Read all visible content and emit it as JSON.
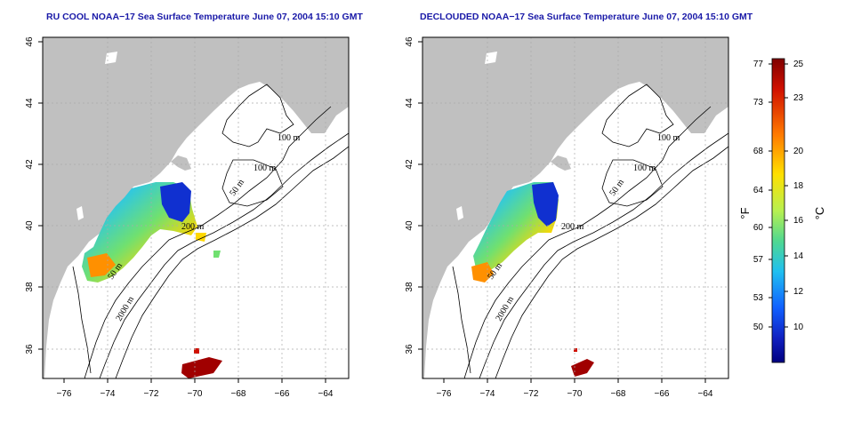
{
  "panels": [
    {
      "title": "RU COOL NOAA−17 Sea Surface Temperature June 07, 2004 15:10 GMT",
      "variant": "raw"
    },
    {
      "title": "DECLOUDED NOAA−17 Sea Surface Temperature June 07, 2004 15:10 GMT",
      "variant": "declouded"
    }
  ],
  "axes": {
    "lon_ticks": [
      "−76",
      "−74",
      "−72",
      "−70",
      "−68",
      "−66",
      "−64"
    ],
    "lat_ticks": [
      "36",
      "38",
      "40",
      "42",
      "44",
      "46"
    ],
    "lon_range": [
      -77,
      -63
    ],
    "lat_range": [
      35,
      46
    ]
  },
  "contour_labels": [
    "100 m",
    "100 m",
    "50 m",
    "200 m",
    "50 m",
    "2000 m"
  ],
  "colorbar": {
    "fahrenheit_ticks": [
      "77",
      "73",
      "68",
      "64",
      "60",
      "57",
      "53",
      "50"
    ],
    "celsius_ticks": [
      "25",
      "23",
      "20",
      "18",
      "16",
      "14",
      "12",
      "10"
    ],
    "fahrenheit_unit": "°F",
    "celsius_unit": "°C",
    "colors": [
      "#8b0000",
      "#e02000",
      "#ff8000",
      "#ffd800",
      "#c8f040",
      "#60d880",
      "#30c8e0",
      "#2080ff",
      "#1030d0",
      "#000090"
    ]
  },
  "colors": {
    "land": "#c0c0c0",
    "title": "#1a1aa8",
    "grid": "#aaaaaa"
  }
}
